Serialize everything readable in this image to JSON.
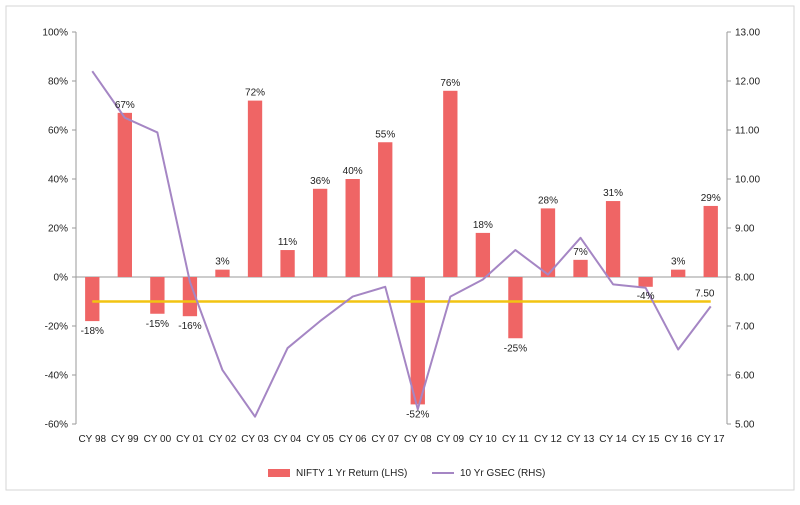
{
  "chart_data": {
    "type": "bar+line",
    "categories": [
      "CY 98",
      "CY 99",
      "CY 00",
      "CY 01",
      "CY 02",
      "CY 03",
      "CY 04",
      "CY 05",
      "CY 06",
      "CY 07",
      "CY 08",
      "CY 09",
      "CY 10",
      "CY 11",
      "CY 12",
      "CY 13",
      "CY 14",
      "CY 15",
      "CY 16",
      "CY 17"
    ],
    "series": [
      {
        "name": "NIFTY 1 Yr Return (LHS)",
        "kind": "bar",
        "axis": "left",
        "color": "#ef6565",
        "values": [
          -18,
          67,
          -15,
          -16,
          3,
          72,
          11,
          36,
          40,
          55,
          -52,
          76,
          18,
          -25,
          28,
          7,
          31,
          -4,
          3,
          29
        ],
        "labels": [
          "-18%",
          "67%",
          "-15%",
          "-16%",
          "3%",
          "72%",
          "11%",
          "36%",
          "40%",
          "55%",
          "-52%",
          "76%",
          "18%",
          "-25%",
          "28%",
          "7%",
          "31%",
          "-4%",
          "3%",
          "29%"
        ]
      },
      {
        "name": "10 Yr GSEC (RHS)",
        "kind": "line",
        "axis": "right",
        "color": "#a586c4",
        "values": [
          12.2,
          11.25,
          10.95,
          7.9,
          6.1,
          5.15,
          6.55,
          7.1,
          7.6,
          7.8,
          5.3,
          7.6,
          7.95,
          8.55,
          8.05,
          8.8,
          7.85,
          7.78,
          6.52,
          7.4
        ]
      }
    ],
    "reference_line": {
      "value": 7.5,
      "axis": "right",
      "color": "#f2c412",
      "label": "7.50"
    },
    "y_left": {
      "min": -60,
      "max": 100,
      "ticks": [
        "-60%",
        "-40%",
        "-20%",
        "0%",
        "20%",
        "40%",
        "60%",
        "80%",
        "100%"
      ]
    },
    "y_right": {
      "min": 5,
      "max": 13,
      "ticks": [
        "5.00",
        "6.00",
        "7.00",
        "8.00",
        "9.00",
        "10.00",
        "11.00",
        "12.00",
        "13.00"
      ]
    },
    "grid": false,
    "legend": "bottom-center"
  }
}
